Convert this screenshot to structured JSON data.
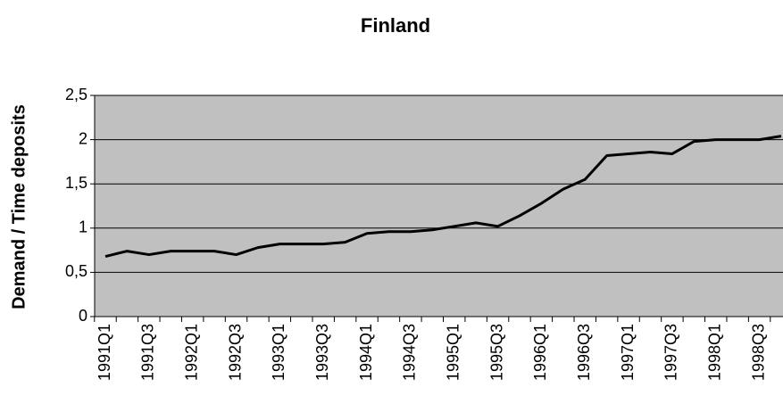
{
  "chart_data": {
    "type": "line",
    "title": "Finland",
    "y_label": "Demand / Time deposits",
    "categories": [
      "1991Q1",
      null,
      "1991Q3",
      null,
      "1992Q1",
      null,
      "1992Q3",
      null,
      "1993Q1",
      null,
      "1993Q3",
      null,
      "1994Q1",
      null,
      "1994Q3",
      null,
      "1995Q1",
      null,
      "1995Q3",
      null,
      "1996Q1",
      null,
      "1996Q3",
      null,
      "1997Q1",
      null,
      "1997Q3",
      null,
      "1998Q1",
      null,
      "1998Q3",
      null
    ],
    "values": [
      0.68,
      0.74,
      0.7,
      0.74,
      0.74,
      0.74,
      0.7,
      0.78,
      0.82,
      0.82,
      0.82,
      0.84,
      0.94,
      0.96,
      0.96,
      0.98,
      1.02,
      1.06,
      1.02,
      1.14,
      1.28,
      1.44,
      1.55,
      1.82,
      1.84,
      1.86,
      1.84,
      1.98,
      2.0,
      2.0,
      2.0,
      2.04
    ],
    "color": "#000000",
    "ylim": [
      0,
      2.5
    ],
    "yticks": [
      0,
      {
        "value": 0.5,
        "label": "0,5"
      },
      1,
      {
        "value": 1.5,
        "label": "1,5"
      },
      2,
      {
        "value": 2.5,
        "label": "2,5"
      }
    ],
    "grid": true
  }
}
